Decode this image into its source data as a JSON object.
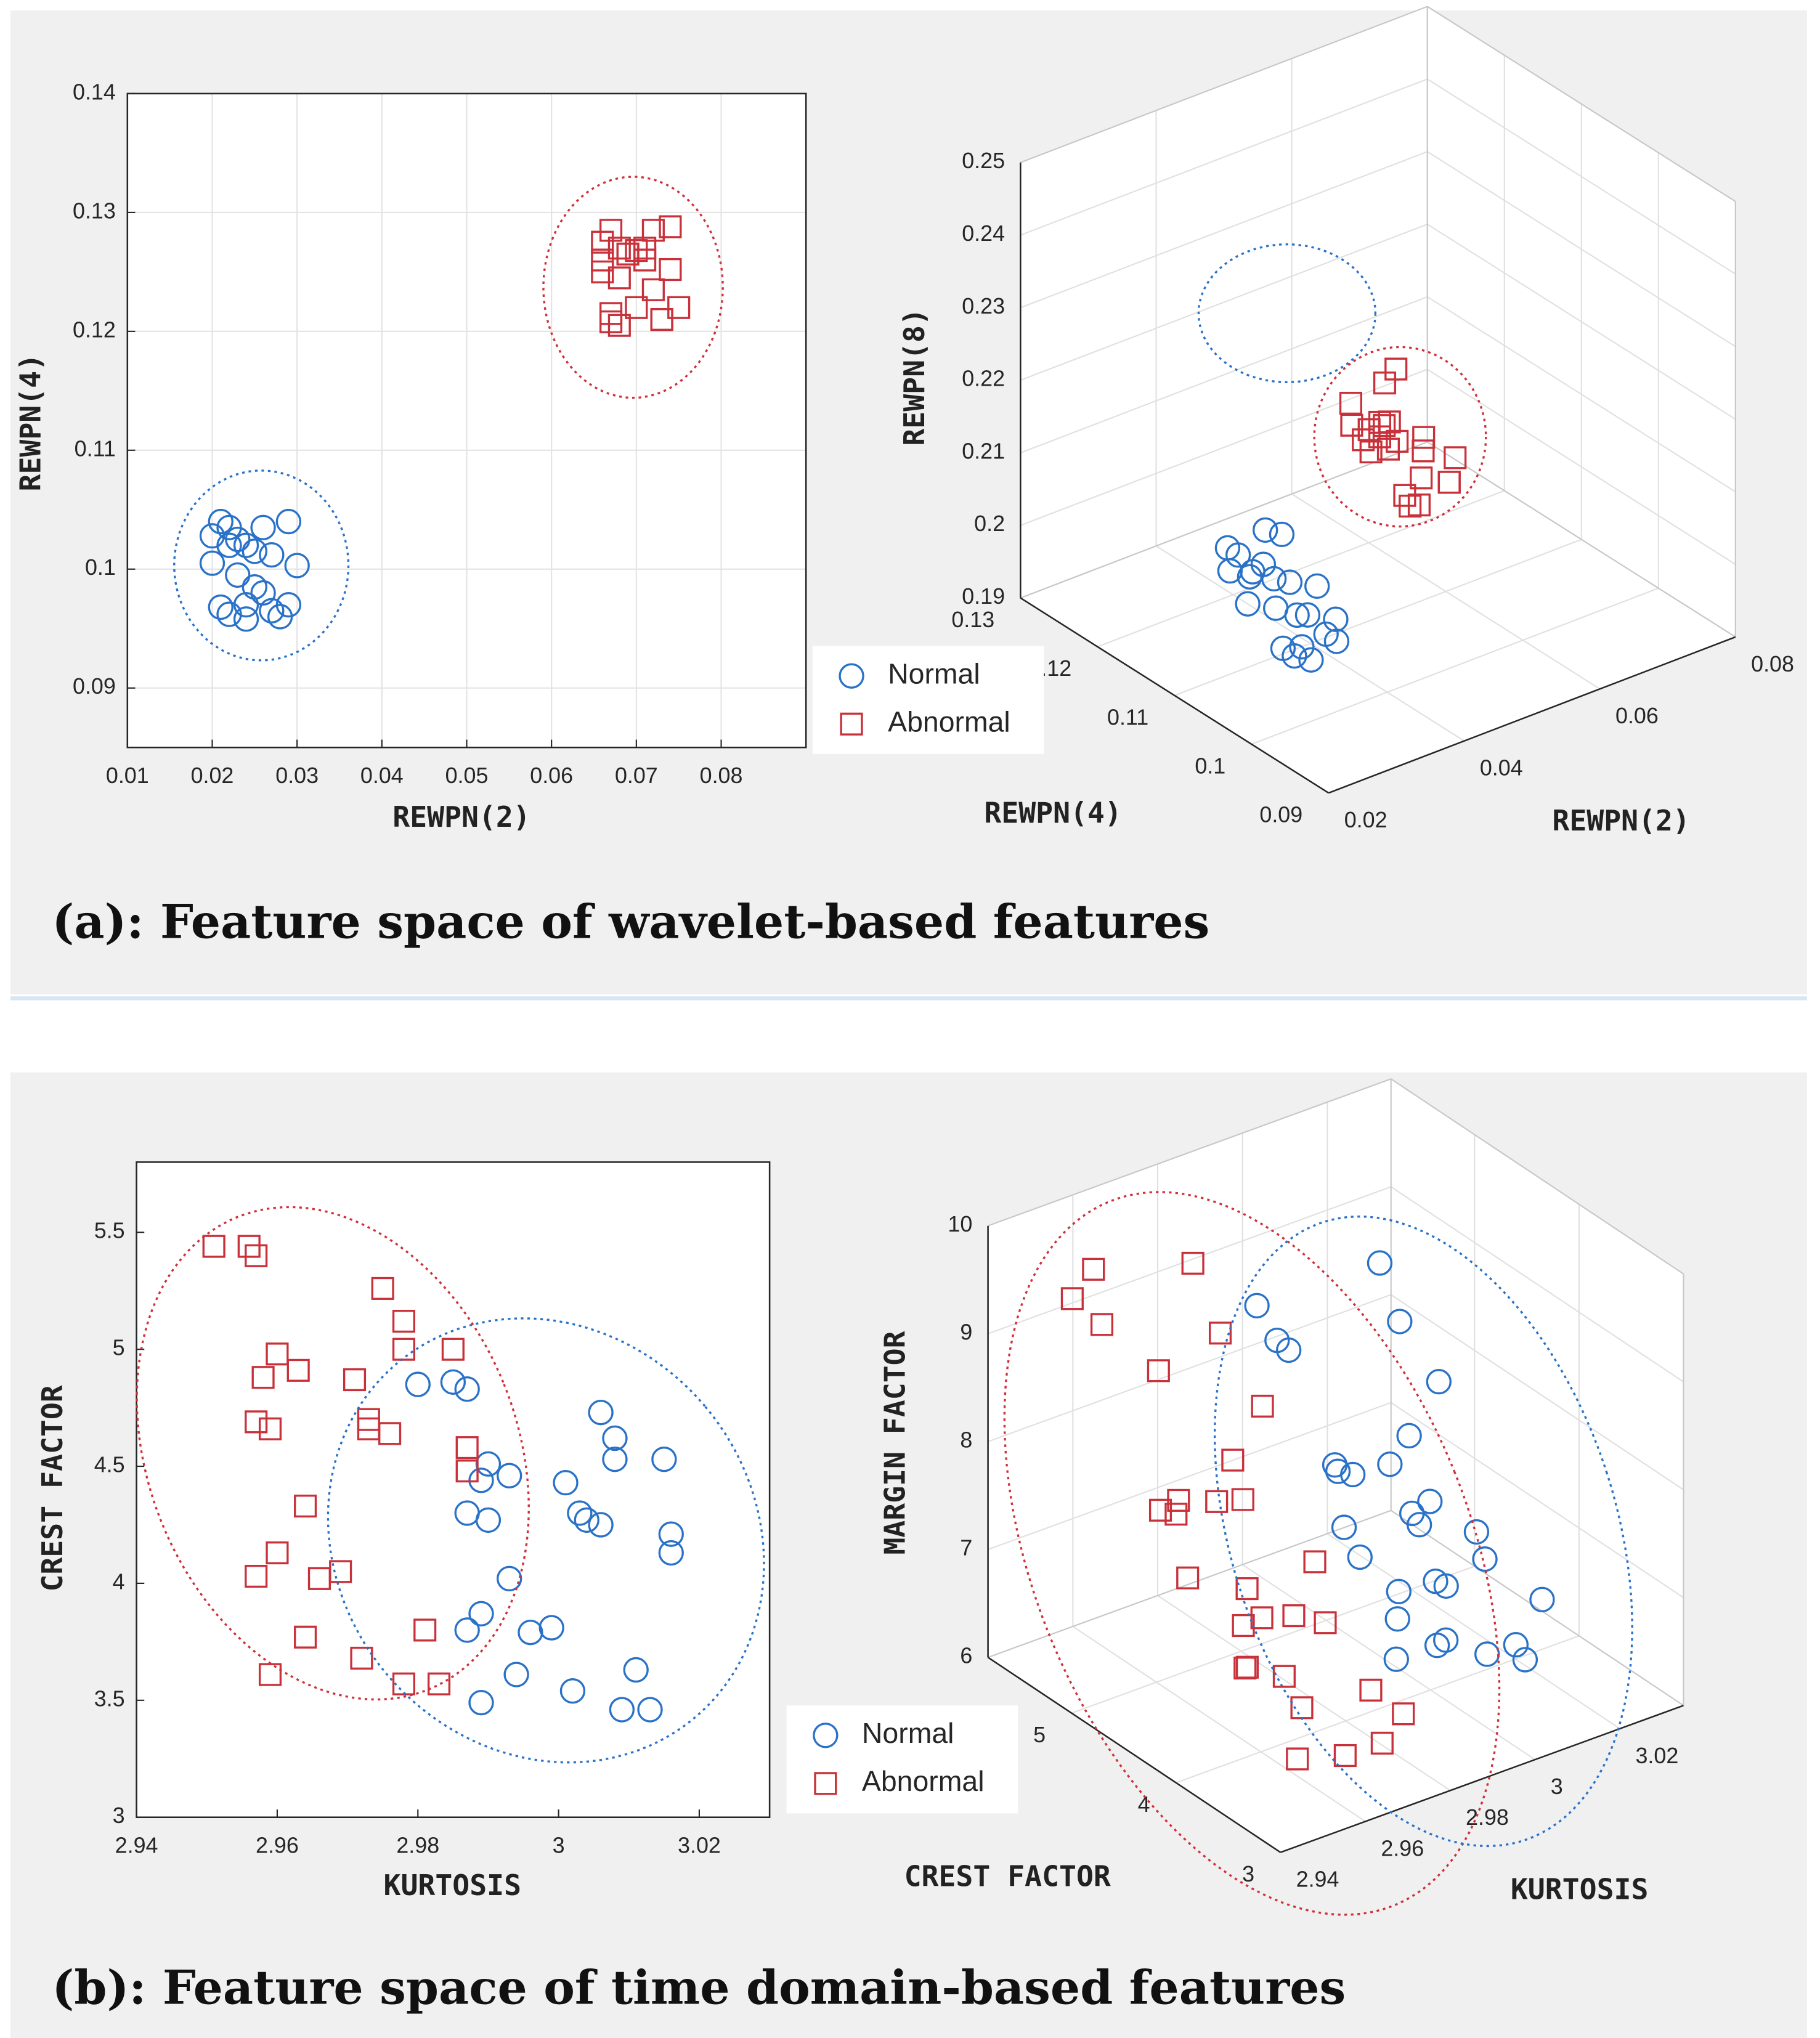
{
  "captions": [
    "(a): Feature space of wavelet-based features",
    "(b): Feature space of time domain-based features"
  ],
  "chart_data": [
    {
      "type": "scatter",
      "xlabel": "REWPN(2)",
      "ylabel": "REWPN(4)",
      "grid": true,
      "xlim": [
        0.01,
        0.09
      ],
      "xticks": [
        0.01,
        0.02,
        0.03,
        0.04,
        0.05,
        0.06,
        0.07,
        0.08
      ],
      "ylim": [
        0.085,
        0.14
      ],
      "yticks": [
        0.09,
        0.1,
        0.11,
        0.12,
        0.13,
        0.14
      ],
      "series": [
        {
          "name": "Normal",
          "color": "#2a72c8",
          "marker": "o",
          "x": [
            0.02,
            0.021,
            0.022,
            0.023,
            0.024,
            0.025,
            0.026,
            0.027,
            0.029,
            0.03,
            0.021,
            0.022,
            0.024,
            0.026,
            0.028,
            0.02,
            0.023,
            0.025,
            0.027,
            0.022,
            0.024,
            0.029
          ],
          "y": [
            0.1028,
            0.104,
            0.1035,
            0.1025,
            0.102,
            0.1015,
            0.1035,
            0.1012,
            0.104,
            0.1003,
            0.0968,
            0.0962,
            0.0958,
            0.098,
            0.096,
            0.1005,
            0.0995,
            0.0985,
            0.0965,
            0.102,
            0.097,
            0.097
          ]
        },
        {
          "name": "Abnormal",
          "color": "#c8313a",
          "marker": "s",
          "x": [
            0.066,
            0.067,
            0.068,
            0.069,
            0.07,
            0.071,
            0.072,
            0.073,
            0.074,
            0.075,
            0.066,
            0.067,
            0.068,
            0.07,
            0.072,
            0.073,
            0.068,
            0.069,
            0.071,
            0.074,
            0.067,
            0.066
          ],
          "y": [
            0.1275,
            0.1285,
            0.127,
            0.1265,
            0.1268,
            0.126,
            0.1285,
            0.121,
            0.1288,
            0.122,
            0.125,
            0.1215,
            0.1205,
            0.122,
            0.1235,
            0.121,
            0.1245,
            0.1265,
            0.127,
            0.1252,
            0.1208,
            0.126
          ]
        }
      ]
    },
    {
      "type": "scatter3d",
      "xlabel": "REWPN(2)",
      "ylabel": "REWPN(4)",
      "zlabel": "REWPN(8)",
      "grid": true,
      "legend": "lower left",
      "xlim": [
        0.02,
        0.08
      ],
      "xticks": [
        0.02,
        0.04,
        0.06,
        0.08
      ],
      "ylim": [
        0.09,
        0.13
      ],
      "yticks": [
        0.09,
        0.1,
        0.11,
        0.12,
        0.13
      ],
      "zlim": [
        0.19,
        0.25
      ],
      "zticks": [
        0.19,
        0.2,
        0.21,
        0.22,
        0.23,
        0.24,
        0.25
      ],
      "series": [
        {
          "name": "Normal",
          "color": "#2a72c8",
          "marker": "o",
          "x": [
            0.02,
            0.021,
            0.022,
            0.023,
            0.024,
            0.025,
            0.026,
            0.027,
            0.029,
            0.03,
            0.021,
            0.022,
            0.024,
            0.026,
            0.028,
            0.02,
            0.023,
            0.025,
            0.027,
            0.022,
            0.024,
            0.029
          ],
          "y": [
            0.1028,
            0.104,
            0.1035,
            0.1025,
            0.102,
            0.1015,
            0.1035,
            0.1012,
            0.104,
            0.1003,
            0.0968,
            0.0962,
            0.0958,
            0.098,
            0.096,
            0.1005,
            0.0995,
            0.0985,
            0.0965,
            0.102,
            0.097,
            0.097
          ],
          "z": [
            0.212,
            0.214,
            0.213,
            0.211,
            0.212,
            0.21,
            0.215,
            0.209,
            0.213,
            0.208,
            0.205,
            0.204,
            0.203,
            0.207,
            0.204,
            0.209,
            0.208,
            0.207,
            0.205,
            0.211,
            0.204,
            0.206
          ]
        },
        {
          "name": "Abnormal",
          "color": "#c8313a",
          "marker": "s",
          "x": [
            0.066,
            0.067,
            0.068,
            0.069,
            0.07,
            0.071,
            0.072,
            0.073,
            0.074,
            0.075,
            0.066,
            0.067,
            0.068,
            0.07,
            0.072,
            0.073,
            0.068,
            0.069,
            0.071,
            0.074,
            0.067,
            0.066
          ],
          "y": [
            0.1275,
            0.1285,
            0.127,
            0.1265,
            0.1268,
            0.126,
            0.1285,
            0.121,
            0.1288,
            0.122,
            0.125,
            0.1215,
            0.1205,
            0.122,
            0.1235,
            0.121,
            0.1245,
            0.1265,
            0.127,
            0.1252,
            0.1208,
            0.126
          ],
          "z": [
            0.199,
            0.201,
            0.198,
            0.197,
            0.198,
            0.196,
            0.202,
            0.193,
            0.203,
            0.195,
            0.197,
            0.193,
            0.192,
            0.194,
            0.196,
            0.193,
            0.197,
            0.199,
            0.198,
            0.196,
            0.192,
            0.198
          ]
        }
      ]
    },
    {
      "type": "scatter",
      "xlabel": "KURTOSIS",
      "ylabel": "CREST FACTOR",
      "grid": false,
      "xlim": [
        2.94,
        3.03
      ],
      "xticks": [
        2.94,
        2.96,
        2.98,
        3,
        3.02
      ],
      "ylim": [
        3,
        5.8
      ],
      "yticks": [
        3,
        3.5,
        4,
        4.5,
        5,
        5.5
      ],
      "series": [
        {
          "name": "Normal",
          "color": "#2a72c8",
          "marker": "o",
          "x": [
            2.98,
            2.985,
            2.987,
            3.006,
            3.008,
            2.99,
            2.989,
            2.993,
            3.001,
            3.008,
            3.015,
            2.987,
            2.99,
            3.003,
            3.004,
            3.006,
            3.016,
            3.016,
            2.993,
            2.989,
            2.987,
            2.996,
            2.999,
            2.994,
            3.002,
            3.011,
            2.989,
            3.009,
            3.013
          ],
          "y": [
            4.85,
            4.86,
            4.83,
            4.73,
            4.62,
            4.51,
            4.44,
            4.46,
            4.43,
            4.53,
            4.53,
            4.3,
            4.27,
            4.3,
            4.27,
            4.25,
            4.21,
            4.13,
            4.02,
            3.87,
            3.8,
            3.79,
            3.81,
            3.61,
            3.54,
            3.63,
            3.49,
            3.46,
            3.46
          ]
        },
        {
          "name": "Abnormal",
          "color": "#c8313a",
          "marker": "s",
          "x": [
            2.951,
            2.956,
            2.957,
            2.975,
            2.978,
            2.96,
            2.978,
            2.985,
            2.958,
            2.963,
            2.971,
            2.957,
            2.959,
            2.973,
            2.973,
            2.976,
            2.987,
            2.987,
            2.964,
            2.96,
            2.957,
            2.966,
            2.969,
            2.964,
            2.972,
            2.981,
            2.959,
            2.978,
            2.983
          ],
          "y": [
            5.44,
            5.44,
            5.4,
            5.26,
            5.12,
            4.98,
            5.0,
            5.0,
            4.88,
            4.91,
            4.87,
            4.69,
            4.66,
            4.7,
            4.66,
            4.64,
            4.58,
            4.48,
            4.33,
            4.13,
            4.03,
            4.02,
            4.05,
            3.77,
            3.68,
            3.8,
            3.61,
            3.57,
            3.57
          ]
        }
      ]
    },
    {
      "type": "scatter3d",
      "xlabel": "KURTOSIS",
      "ylabel": "CREST FACTOR",
      "zlabel": "MARGIN FACTOR",
      "grid": true,
      "legend": "lower left",
      "xlim": [
        2.94,
        3.035
      ],
      "xticks": [
        2.94,
        2.96,
        2.98,
        3,
        3.02
      ],
      "ylim": [
        3,
        5.8
      ],
      "yticks": [
        3,
        4,
        5
      ],
      "zlim": [
        6,
        10
      ],
      "zticks": [
        6,
        7,
        8,
        9,
        10
      ],
      "series": [
        {
          "name": "Normal",
          "color": "#2a72c8",
          "marker": "o",
          "x": [
            2.98,
            2.985,
            2.987,
            3.006,
            3.008,
            2.99,
            2.989,
            2.993,
            3.001,
            3.008,
            3.015,
            2.987,
            2.99,
            3.003,
            3.004,
            3.006,
            3.016,
            3.016,
            2.993,
            2.989,
            2.987,
            2.996,
            2.999,
            2.994,
            3.002,
            3.011,
            2.989,
            3.009,
            3.013
          ],
          "y": [
            4.85,
            4.86,
            4.83,
            4.73,
            4.62,
            4.51,
            4.44,
            4.46,
            4.43,
            4.53,
            4.53,
            4.3,
            4.27,
            4.3,
            4.27,
            4.25,
            4.21,
            4.13,
            4.02,
            3.87,
            3.8,
            3.79,
            3.81,
            3.61,
            3.54,
            3.63,
            3.49,
            3.46,
            3.46
          ],
          "z": [
            9.3,
            8.9,
            8.8,
            9.4,
            8.9,
            7.9,
            7.9,
            7.8,
            7.8,
            7.9,
            8.3,
            7.5,
            7.2,
            7.4,
            7.3,
            7.5,
            7.1,
            6.9,
            7.0,
            6.9,
            6.6,
            7.2,
            7.1,
            6.8,
            6.6,
            6.5,
            6.9,
            6.5,
            7.0
          ]
        },
        {
          "name": "Abnormal",
          "color": "#c8313a",
          "marker": "s",
          "x": [
            2.951,
            2.956,
            2.957,
            2.975,
            2.978,
            2.96,
            2.978,
            2.985,
            2.958,
            2.963,
            2.971,
            2.957,
            2.959,
            2.973,
            2.973,
            2.976,
            2.987,
            2.987,
            2.964,
            2.96,
            2.957,
            2.966,
            2.969,
            2.964,
            2.972,
            2.981,
            2.959,
            2.978,
            2.983
          ],
          "y": [
            5.44,
            5.44,
            5.4,
            5.26,
            5.12,
            4.98,
            5.0,
            5.0,
            4.88,
            4.91,
            4.87,
            4.69,
            4.66,
            4.7,
            4.66,
            4.64,
            4.58,
            4.48,
            4.33,
            4.13,
            4.03,
            4.02,
            4.05,
            3.77,
            3.68,
            3.8,
            3.61,
            3.57,
            3.57
          ],
          "z": [
            9.4,
            9.6,
            9.1,
            9.5,
            8.9,
            8.9,
            7.8,
            8.2,
            7.7,
            7.7,
            7.6,
            7.8,
            7.2,
            7.7,
            6.9,
            6.6,
            7.0,
            6.5,
            6.9,
            6.7,
            6.8,
            6.6,
            7.1,
            6.5,
            6.0,
            6.4,
            6.2,
            6.1,
            6.3
          ]
        }
      ]
    }
  ]
}
